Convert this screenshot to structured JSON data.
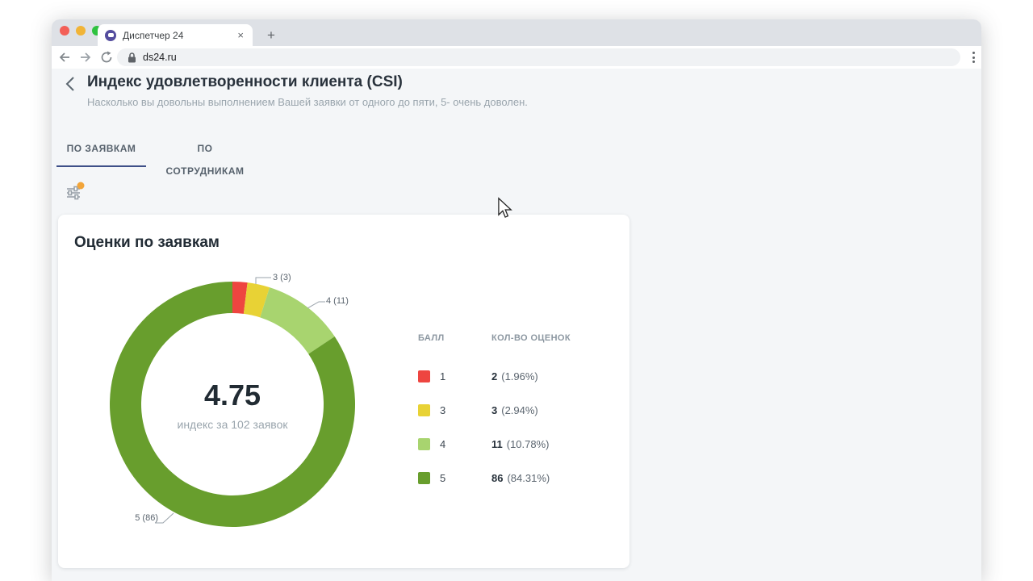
{
  "browser": {
    "tab_title": "Диспетчер 24",
    "close_tab_label": "×",
    "new_tab_label": "+",
    "url": "ds24.ru"
  },
  "page": {
    "title": "Индекс удовлетворенности клиента (CSI)",
    "subtitle": "Насколько вы довольны выполнением Вашей заявки от одного до пяти, 5- очень доволен.",
    "tabs": [
      {
        "label": "ПО ЗАЯВКАМ",
        "active": true
      },
      {
        "label": "ПО СОТРУДНИКАМ",
        "active": false
      }
    ]
  },
  "card": {
    "title": "Оценки по заявкам",
    "center_value": "4.75",
    "center_caption": "индекс за 102 заявок"
  },
  "chart_data": {
    "type": "pie",
    "donut": true,
    "title": "Оценки по заявкам",
    "center_value": 4.75,
    "total_reviews": 102,
    "start_angle_deg": 0,
    "direction": "clockwise",
    "slices": [
      {
        "score": "1",
        "count": 2,
        "pct": "1.96%",
        "color": "#ee4540"
      },
      {
        "score": "3",
        "count": 3,
        "pct": "2.94%",
        "color": "#e8d235"
      },
      {
        "score": "4",
        "count": 11,
        "pct": "10.78%",
        "color": "#a8d46f"
      },
      {
        "score": "5",
        "count": 86,
        "pct": "84.31%",
        "color": "#689e2d"
      }
    ],
    "callouts": [
      {
        "text": "3 (3)"
      },
      {
        "text": "4 (11)"
      },
      {
        "text": "5 (86)"
      }
    ]
  },
  "legend": {
    "col_score": "БАЛЛ",
    "col_count": "КОЛ-ВО ОЦЕНОК",
    "rows": [
      {
        "score": "1",
        "count": "2",
        "pct": "(1.96%)",
        "color": "#ee4540"
      },
      {
        "score": "3",
        "count": "3",
        "pct": "(2.94%)",
        "color": "#e8d235"
      },
      {
        "score": "4",
        "count": "11",
        "pct": "(10.78%)",
        "color": "#a8d46f"
      },
      {
        "score": "5",
        "count": "86",
        "pct": "(84.31%)",
        "color": "#689e2d"
      }
    ]
  },
  "colors": {
    "active_tab_underline": "#3e4f88",
    "notification_dot": "#f2a53a",
    "page_background": "#f4f6f8"
  }
}
